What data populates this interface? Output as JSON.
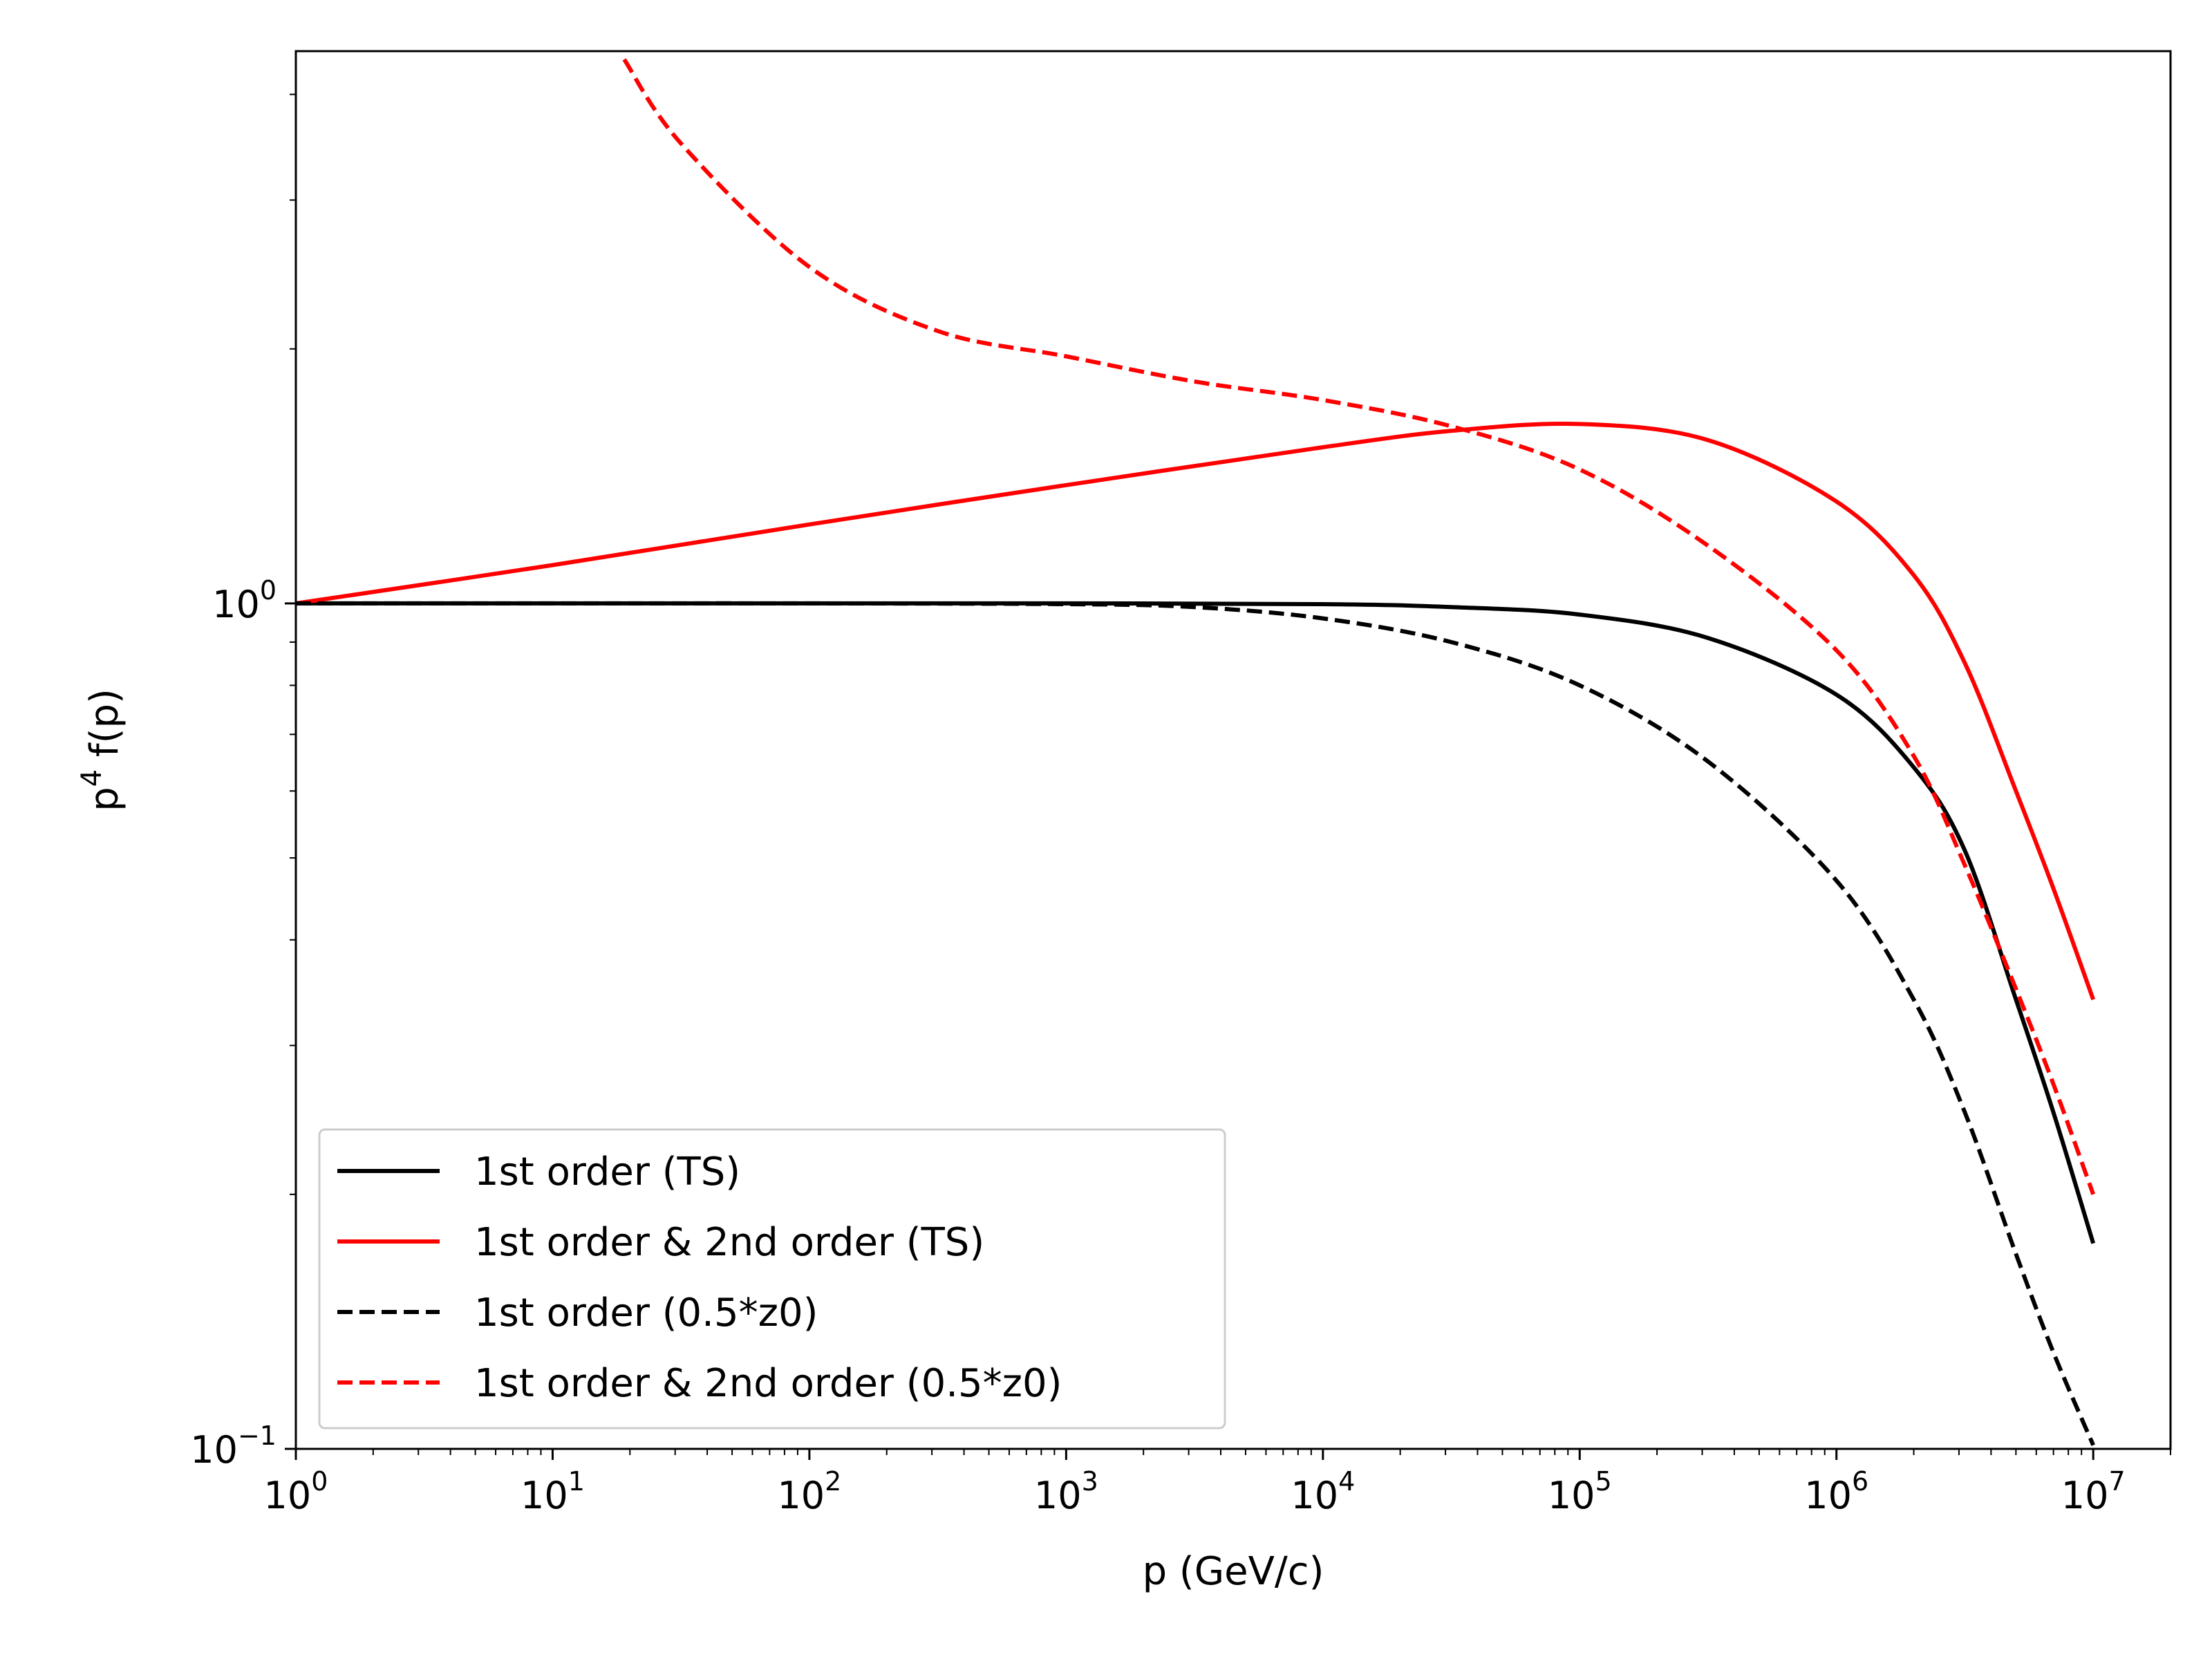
{
  "chart_data": {
    "type": "line",
    "title": "",
    "xlabel": "p (GeV/c)",
    "ylabel": "p^4 f(p)",
    "xscale": "log",
    "yscale": "log",
    "xlim": [
      1,
      20000000
    ],
    "ylim": [
      0.1,
      4.5
    ],
    "x_ticks": [
      {
        "value": 1,
        "base": "10",
        "exp": "0"
      },
      {
        "value": 10,
        "base": "10",
        "exp": "1"
      },
      {
        "value": 100,
        "base": "10",
        "exp": "2"
      },
      {
        "value": 1000,
        "base": "10",
        "exp": "3"
      },
      {
        "value": 10000,
        "base": "10",
        "exp": "4"
      },
      {
        "value": 100000,
        "base": "10",
        "exp": "5"
      },
      {
        "value": 1000000,
        "base": "10",
        "exp": "6"
      },
      {
        "value": 10000000,
        "base": "10",
        "exp": "7"
      }
    ],
    "y_ticks": [
      {
        "value": 0.1,
        "base": "10",
        "exp": "−1"
      },
      {
        "value": 1,
        "base": "10",
        "exp": "0"
      }
    ],
    "grid": false,
    "legend": "lower-left",
    "series": [
      {
        "name": "1st order (TS)",
        "color": "#000000",
        "dash": "solid",
        "x": [
          1,
          10,
          100,
          1000,
          10000,
          31623,
          100000,
          316228,
          1000000,
          2000000,
          3162278,
          5000000,
          7000000,
          10000000
        ],
        "y": [
          1.0,
          1.0,
          1.0,
          1.0,
          0.998,
          0.99,
          0.97,
          0.91,
          0.78,
          0.64,
          0.51,
          0.34,
          0.25,
          0.175
        ]
      },
      {
        "name": "1st order & 2nd order (TS)",
        "color": "#ff0000",
        "dash": "solid",
        "x": [
          1,
          10,
          100,
          1000,
          10000,
          31623,
          100000,
          316228,
          1000000,
          2000000,
          3162278,
          5000000,
          7000000,
          10000000
        ],
        "y": [
          1.0,
          1.11,
          1.24,
          1.38,
          1.53,
          1.6,
          1.63,
          1.56,
          1.32,
          1.08,
          0.85,
          0.6,
          0.46,
          0.34
        ]
      },
      {
        "name": "1st order (0.5*z0)",
        "color": "#000000",
        "dash": "dashed",
        "x": [
          1,
          10,
          100,
          1000,
          3162,
          10000,
          31623,
          100000,
          316228,
          1000000,
          2000000,
          3162278,
          5000000,
          7000000,
          10000000
        ],
        "y": [
          1.0,
          1.0,
          1.0,
          0.998,
          0.99,
          0.96,
          0.9,
          0.8,
          0.65,
          0.47,
          0.34,
          0.25,
          0.17,
          0.13,
          0.101
        ]
      },
      {
        "name": "1st order & 2nd order (0.5*z0)",
        "color": "#ff0000",
        "dash": "dashed",
        "x": [
          19,
          31.6,
          100,
          316,
          1000,
          3162,
          10000,
          31623,
          100000,
          316228,
          1000000,
          2000000,
          3162278,
          5000000,
          7000000,
          10000000
        ],
        "y": [
          4.4,
          3.5,
          2.5,
          2.1,
          1.96,
          1.83,
          1.74,
          1.62,
          1.44,
          1.17,
          0.88,
          0.66,
          0.49,
          0.35,
          0.27,
          0.2
        ]
      }
    ]
  }
}
